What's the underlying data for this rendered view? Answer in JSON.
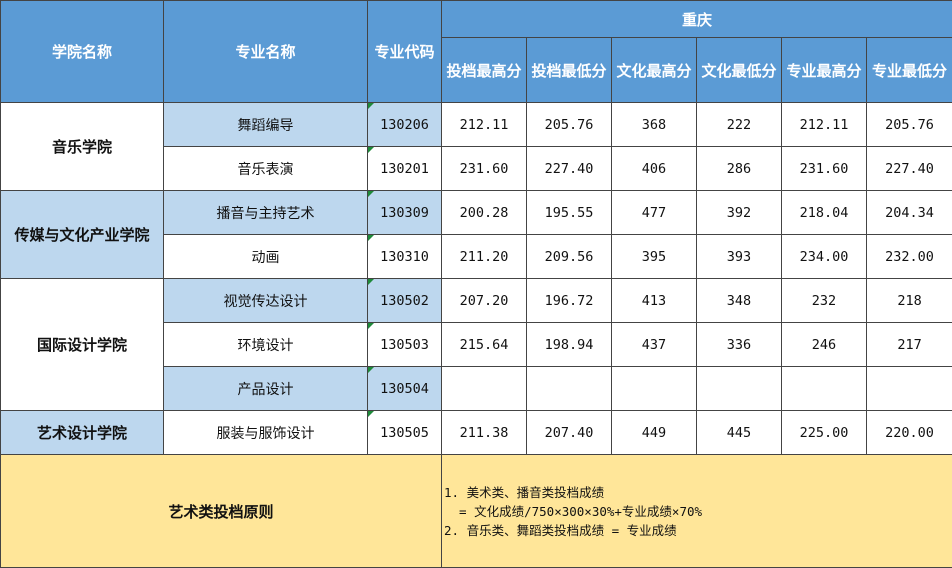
{
  "header": {
    "college": "学院名称",
    "major": "专业名称",
    "code": "专业代码",
    "region": "重庆",
    "columns": [
      "投档最高分",
      "投档最低分",
      "文化最高分",
      "文化最低分",
      "专业最高分",
      "专业最低分"
    ]
  },
  "colleges": [
    {
      "name": "音乐学院",
      "majors": [
        {
          "name": "舞蹈编导",
          "code": "130206",
          "scores": [
            "212.11",
            "205.76",
            "368",
            "222",
            "212.11",
            "205.76"
          ]
        },
        {
          "name": "音乐表演",
          "code": "130201",
          "scores": [
            "231.60",
            "227.40",
            "406",
            "286",
            "231.60",
            "227.40"
          ]
        }
      ]
    },
    {
      "name": "传媒与文化产业学院",
      "majors": [
        {
          "name": "播音与主持艺术",
          "code": "130309",
          "scores": [
            "200.28",
            "195.55",
            "477",
            "392",
            "218.04",
            "204.34"
          ]
        },
        {
          "name": "动画",
          "code": "130310",
          "scores": [
            "211.20",
            "209.56",
            "395",
            "393",
            "234.00",
            "232.00"
          ]
        }
      ]
    },
    {
      "name": "国际设计学院",
      "majors": [
        {
          "name": "视觉传达设计",
          "code": "130502",
          "scores": [
            "207.20",
            "196.72",
            "413",
            "348",
            "232",
            "218"
          ]
        },
        {
          "name": "环境设计",
          "code": "130503",
          "scores": [
            "215.64",
            "198.94",
            "437",
            "336",
            "246",
            "217"
          ]
        },
        {
          "name": "产品设计",
          "code": "130504",
          "scores": []
        }
      ]
    },
    {
      "name": "艺术设计学院",
      "majors": [
        {
          "name": "服装与服饰设计",
          "code": "130505",
          "scores": [
            "211.38",
            "207.40",
            "449",
            "445",
            "225.00",
            "220.00"
          ]
        }
      ]
    }
  ],
  "footer": {
    "title": "艺术类投档原则",
    "lines": [
      "1. 美术类、播音类投档成绩",
      "  = 文化成绩/750×300×30%+专业成绩×70%",
      "2. 音乐类、舞蹈类投档成绩 = 专业成绩"
    ]
  }
}
